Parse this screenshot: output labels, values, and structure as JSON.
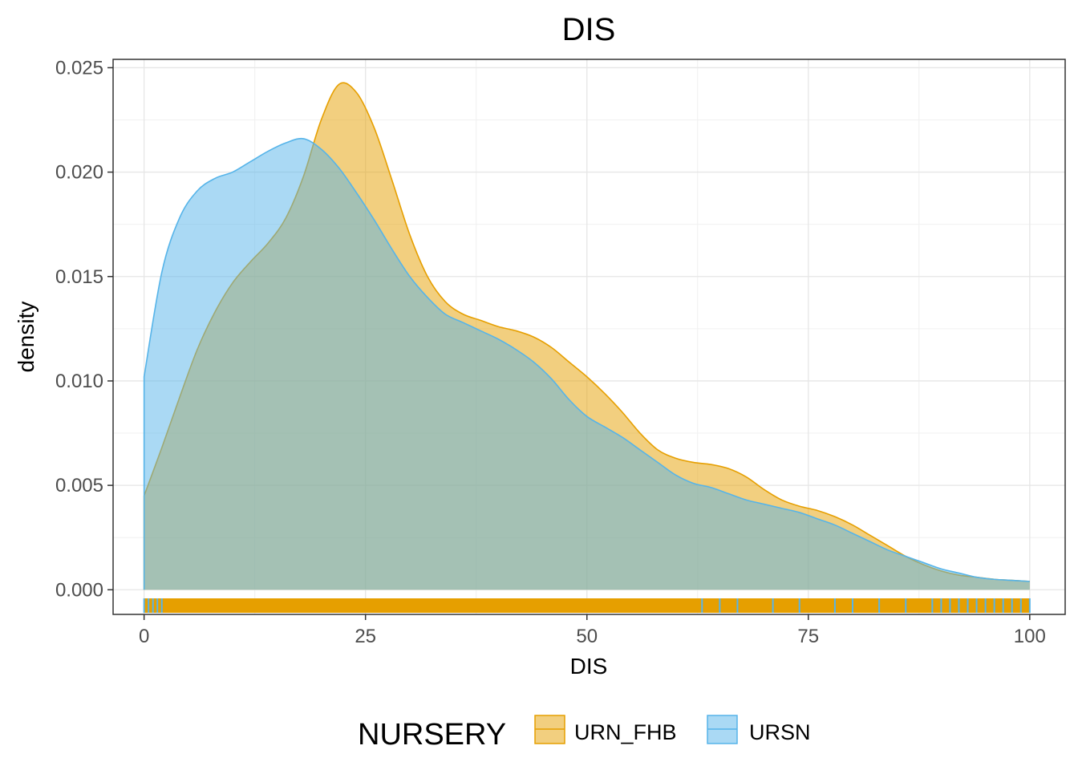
{
  "chart_data": {
    "type": "area",
    "title": "DIS",
    "xlabel": "DIS",
    "ylabel": "density",
    "xlim": [
      -3.5,
      104
    ],
    "ylim": [
      -0.00118,
      0.0254
    ],
    "x_ticks": [
      0,
      25,
      50,
      75,
      100
    ],
    "x_tick_labels": [
      "0",
      "25",
      "50",
      "75",
      "100"
    ],
    "y_ticks": [
      0.0,
      0.005,
      0.01,
      0.015,
      0.02,
      0.025
    ],
    "y_tick_labels": [
      "0.000",
      "0.005",
      "0.010",
      "0.015",
      "0.020",
      "0.025"
    ],
    "grid": true,
    "legend": {
      "position": "bottom",
      "title": "NURSERY",
      "items": [
        {
          "label": "URN_FHB",
          "color": "#E69F00"
        },
        {
          "label": "URSN",
          "color": "#56B4E9"
        }
      ]
    },
    "series": [
      {
        "name": "URN_FHB",
        "color": "#E69F00",
        "x": [
          0,
          2,
          4,
          6,
          8,
          10,
          12,
          14,
          16,
          18,
          20,
          22,
          24,
          26,
          28,
          30,
          32,
          34,
          36,
          38,
          40,
          42,
          44,
          46,
          48,
          50,
          52,
          54,
          56,
          58,
          60,
          62,
          64,
          66,
          68,
          70,
          72,
          74,
          76,
          78,
          80,
          82,
          84,
          86,
          88,
          90,
          92,
          94,
          96,
          98,
          100
        ],
        "y": [
          0.0045,
          0.0068,
          0.0092,
          0.0115,
          0.0133,
          0.0147,
          0.0157,
          0.0166,
          0.0178,
          0.0198,
          0.0225,
          0.0242,
          0.0238,
          0.0221,
          0.0196,
          0.017,
          0.015,
          0.0138,
          0.0132,
          0.0129,
          0.0126,
          0.0124,
          0.0121,
          0.0116,
          0.0109,
          0.0102,
          0.0094,
          0.0085,
          0.0075,
          0.0067,
          0.0063,
          0.0061,
          0.006,
          0.0058,
          0.0054,
          0.0048,
          0.0043,
          0.004,
          0.0038,
          0.0035,
          0.0031,
          0.0026,
          0.0021,
          0.0016,
          0.0012,
          0.0009,
          0.0007,
          0.0006,
          0.0005,
          0.00045,
          0.0004
        ]
      },
      {
        "name": "URSN",
        "color": "#56B4E9",
        "x": [
          0,
          2,
          4,
          6,
          8,
          10,
          12,
          14,
          16,
          18,
          20,
          22,
          24,
          26,
          28,
          30,
          32,
          34,
          36,
          38,
          40,
          42,
          44,
          46,
          48,
          50,
          52,
          54,
          56,
          58,
          60,
          62,
          64,
          66,
          68,
          70,
          72,
          74,
          76,
          78,
          80,
          82,
          84,
          86,
          88,
          90,
          92,
          94,
          96,
          98,
          100
        ],
        "y": [
          0.0102,
          0.0152,
          0.0178,
          0.0191,
          0.0197,
          0.02,
          0.0205,
          0.021,
          0.0214,
          0.0216,
          0.0211,
          0.0202,
          0.019,
          0.0177,
          0.0163,
          0.015,
          0.014,
          0.0132,
          0.0128,
          0.0124,
          0.012,
          0.0115,
          0.0109,
          0.0101,
          0.0091,
          0.0083,
          0.0078,
          0.0073,
          0.0067,
          0.0061,
          0.0055,
          0.0051,
          0.0049,
          0.0046,
          0.0043,
          0.0041,
          0.0039,
          0.0037,
          0.0034,
          0.0031,
          0.0027,
          0.0023,
          0.0019,
          0.0016,
          0.0013,
          0.001,
          0.0008,
          0.0006,
          0.0005,
          0.00045,
          0.0004
        ]
      }
    ],
    "rug": {
      "description": "observations along x axis",
      "URN_FHB_range": [
        0,
        100
      ],
      "URSN_points": [
        0,
        0.5,
        1,
        1.5,
        2,
        63,
        65,
        67,
        71,
        74,
        78,
        80,
        83,
        86,
        89,
        90,
        91,
        92,
        93,
        94,
        95,
        96,
        97,
        98,
        99,
        100
      ]
    }
  }
}
